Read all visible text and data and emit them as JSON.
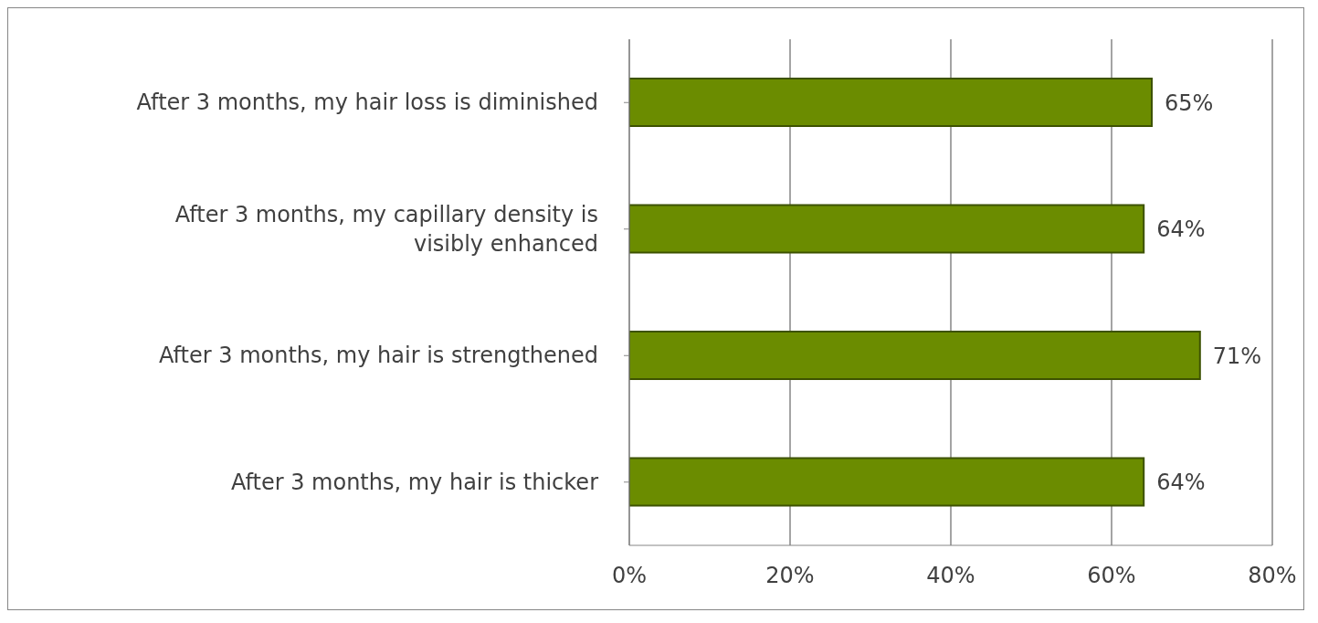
{
  "chart_data": {
    "type": "bar",
    "orientation": "horizontal",
    "categories": [
      "After 3 months, my hair loss is diminished",
      "After 3 months, my capillary density is visibly enhanced",
      "After 3 months, my hair is strengthened",
      "After 3 months, my hair is thicker"
    ],
    "values": [
      65,
      64,
      71,
      64
    ],
    "value_labels": [
      "65%",
      "64%",
      "71%",
      "64%"
    ],
    "color": "#6b8c00",
    "xlim": [
      0,
      80
    ],
    "xticks": [
      {
        "value": 0,
        "label": "0%"
      },
      {
        "value": 20,
        "label": "20%"
      },
      {
        "value": 40,
        "label": "40%"
      },
      {
        "value": 60,
        "label": "60%"
      },
      {
        "value": 80,
        "label": "80%"
      }
    ],
    "grid": "x"
  }
}
